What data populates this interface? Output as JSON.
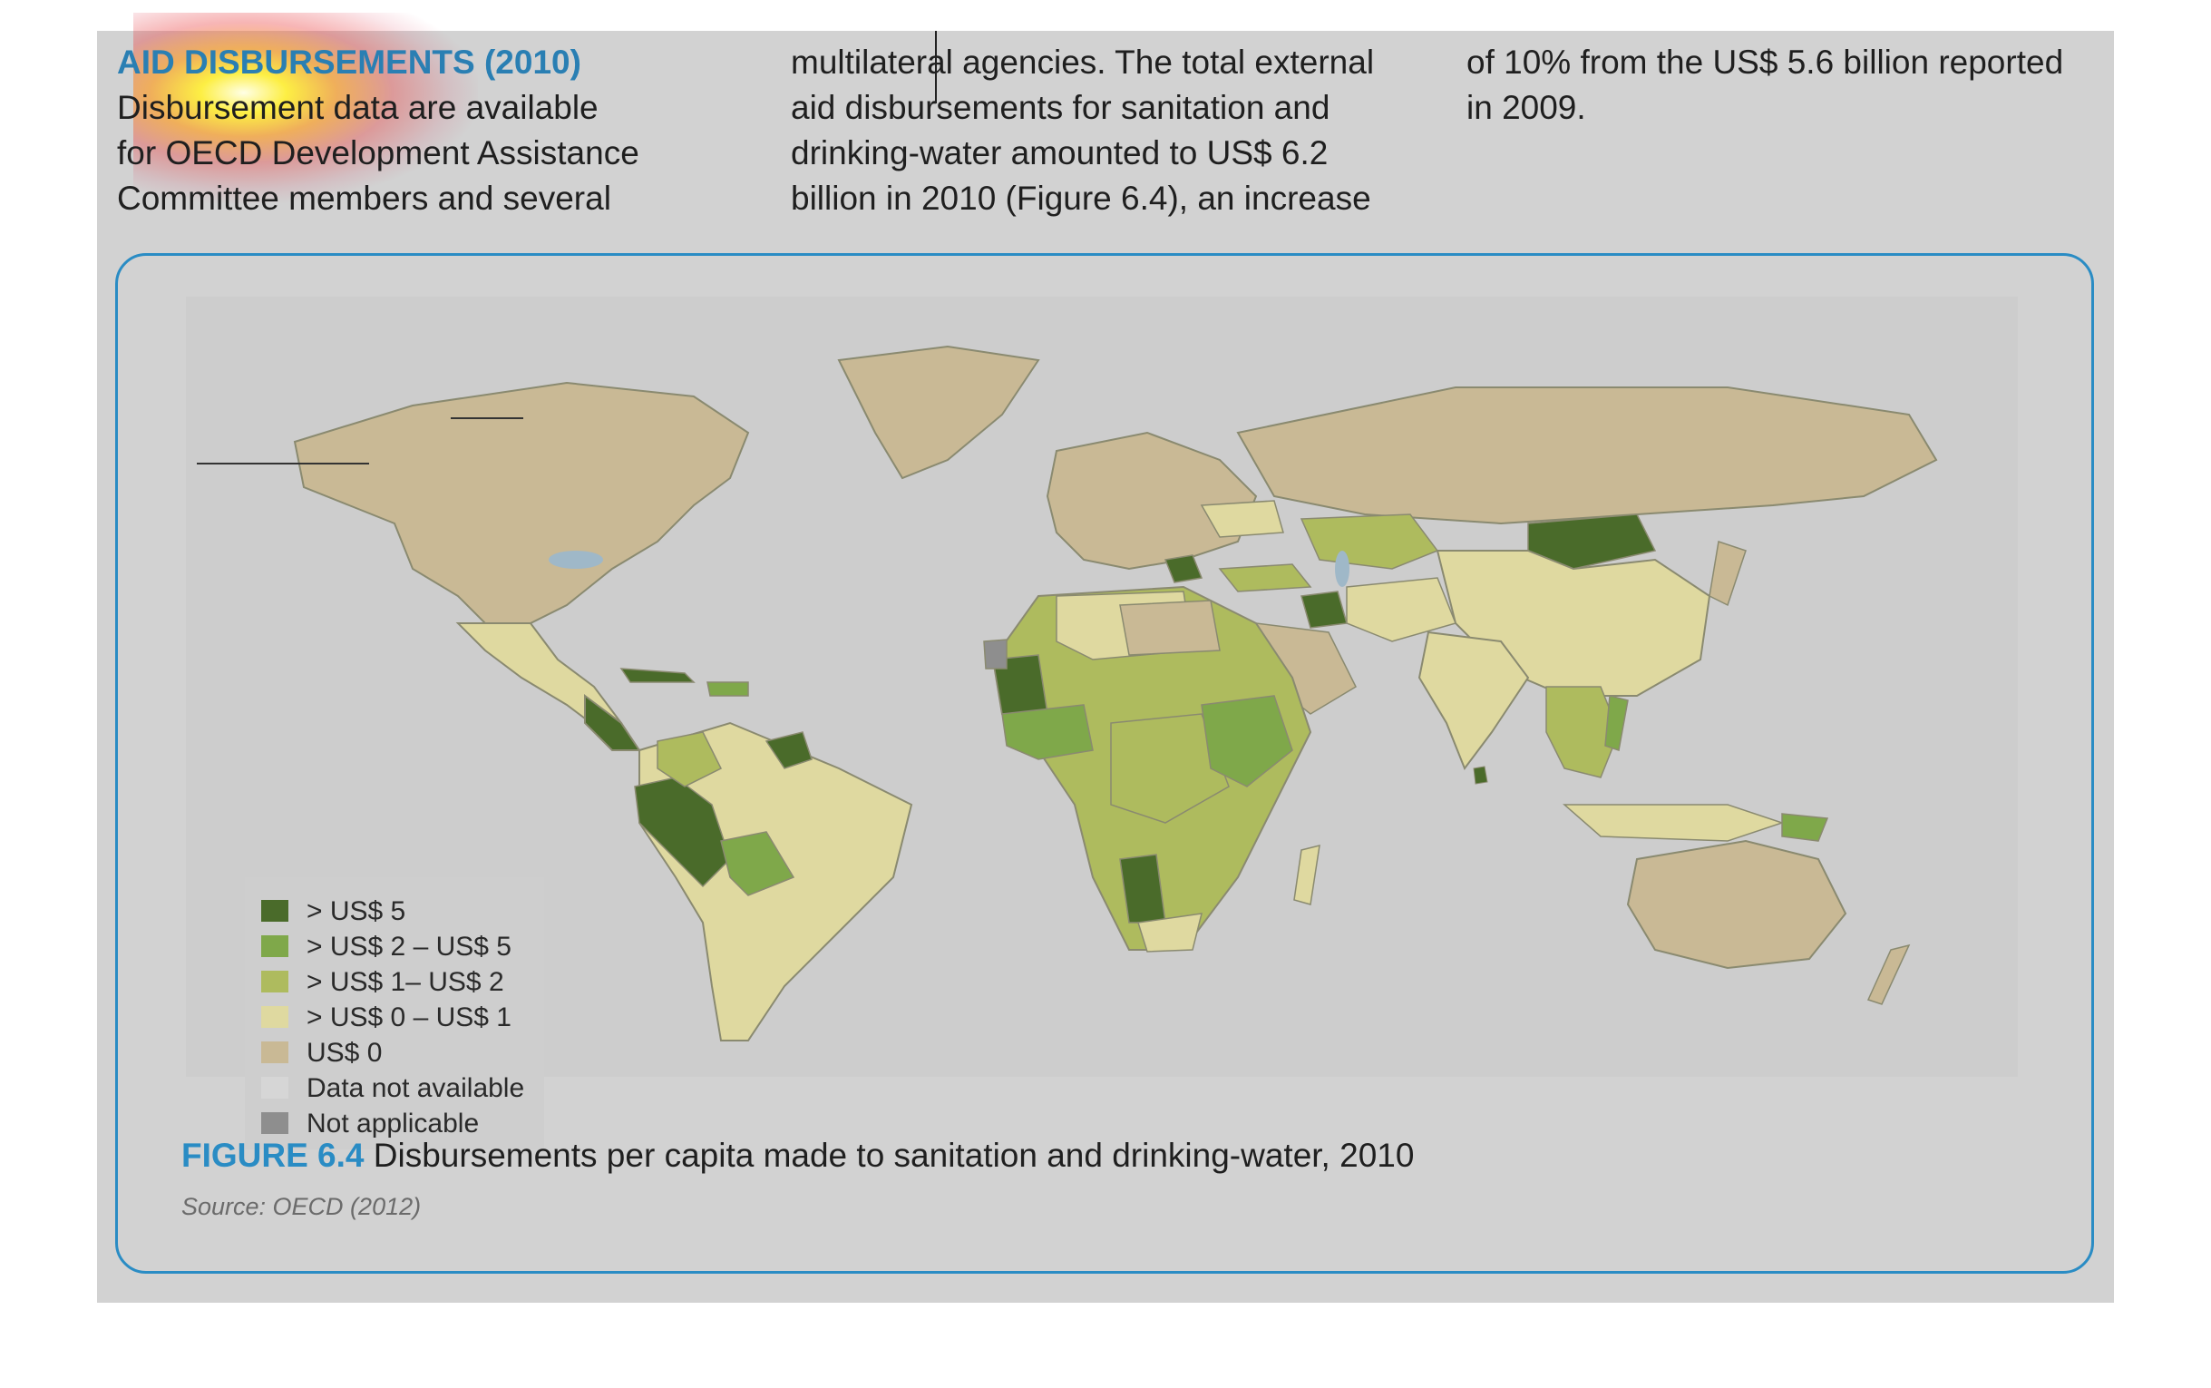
{
  "text": {
    "heading": "AID DISBURSEMENTS (2010)",
    "col1": "Disbursement data are available\nfor OECD Development Assistance\nCommittee members and several",
    "col2": "multilateral agencies. The total external\naid disbursements for sanitation and\ndrinking-water amounted to US$ 6.2\nbillion in 2010 (Figure 6.4), an increase",
    "col3": "of 10% from the US$ 5.6 billion reported\nin 2009."
  },
  "figure": {
    "label": "FIGURE 6.4",
    "title": "Disbursements per capita made to sanitation and drinking-water, 2010",
    "source": "Source: OECD (2012)"
  },
  "legend": [
    {
      "label": "> US$ 5",
      "color": "#4a6b2a"
    },
    {
      "label": "> US$ 2 – US$ 5",
      "color": "#7fa84a"
    },
    {
      "label": "> US$ 1– US$ 2",
      "color": "#aebb5e"
    },
    {
      "label": "> US$ 0 – US$ 1",
      "color": "#dfd9a0"
    },
    {
      "label": "US$ 0",
      "color": "#c9b995"
    },
    {
      "label": "Data not available",
      "color": "#d6d6d6"
    },
    {
      "label": "Not applicable",
      "color": "#8e8e8e"
    }
  ]
}
